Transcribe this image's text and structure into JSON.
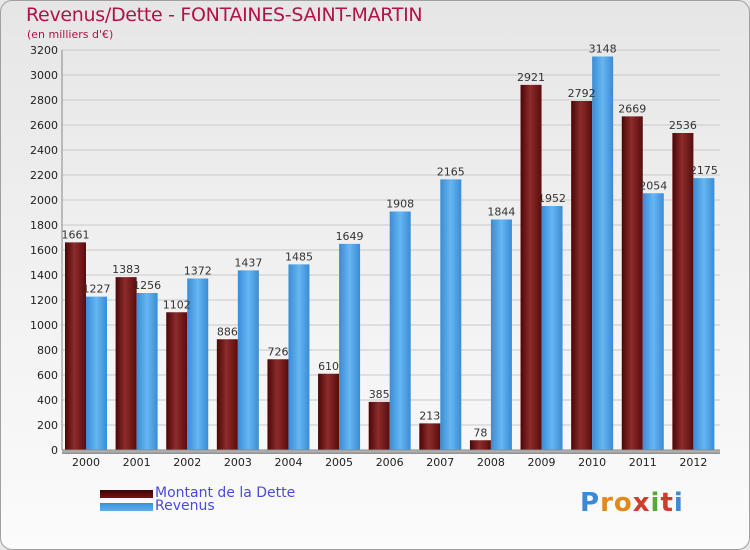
{
  "title": "Revenus/Dette - FONTAINES-SAINT-MARTIN",
  "subtitle": "(en milliers d'€)",
  "logo": {
    "letters": [
      "P",
      "r",
      "o",
      "x",
      "i",
      "t",
      "i"
    ],
    "colors": [
      "#3a8ad6",
      "#e08a1a",
      "#e08a1a",
      "#d23a2a",
      "#5aa83a",
      "#d23a2a",
      "#3a8ad6"
    ]
  },
  "colors": {
    "title": "#b0124a",
    "debt_dark": "#5a0a0a",
    "debt_light": "#8a2a2a",
    "rev_dark": "#3a8cd4",
    "rev_light": "#63b3f0",
    "legend_text": "#4a4ae0"
  },
  "chart_data": {
    "type": "bar",
    "categories": [
      "2000",
      "2001",
      "2002",
      "2003",
      "2004",
      "2005",
      "2006",
      "2007",
      "2008",
      "2009",
      "2010",
      "2011",
      "2012"
    ],
    "series": [
      {
        "name": "Montant de la Dette",
        "values": [
          1661,
          1383,
          1102,
          886,
          726,
          610,
          385,
          213,
          78,
          2921,
          2792,
          2669,
          2536
        ]
      },
      {
        "name": "Revenus",
        "values": [
          1227,
          1256,
          1372,
          1437,
          1485,
          1649,
          1908,
          2165,
          1844,
          1952,
          3148,
          2054,
          2175
        ]
      }
    ],
    "yticks": [
      0,
      200,
      400,
      600,
      800,
      1000,
      1200,
      1400,
      1600,
      1800,
      2000,
      2200,
      2400,
      2600,
      2800,
      3000,
      3200
    ],
    "ylim": [
      0,
      3200
    ],
    "grid": true
  }
}
